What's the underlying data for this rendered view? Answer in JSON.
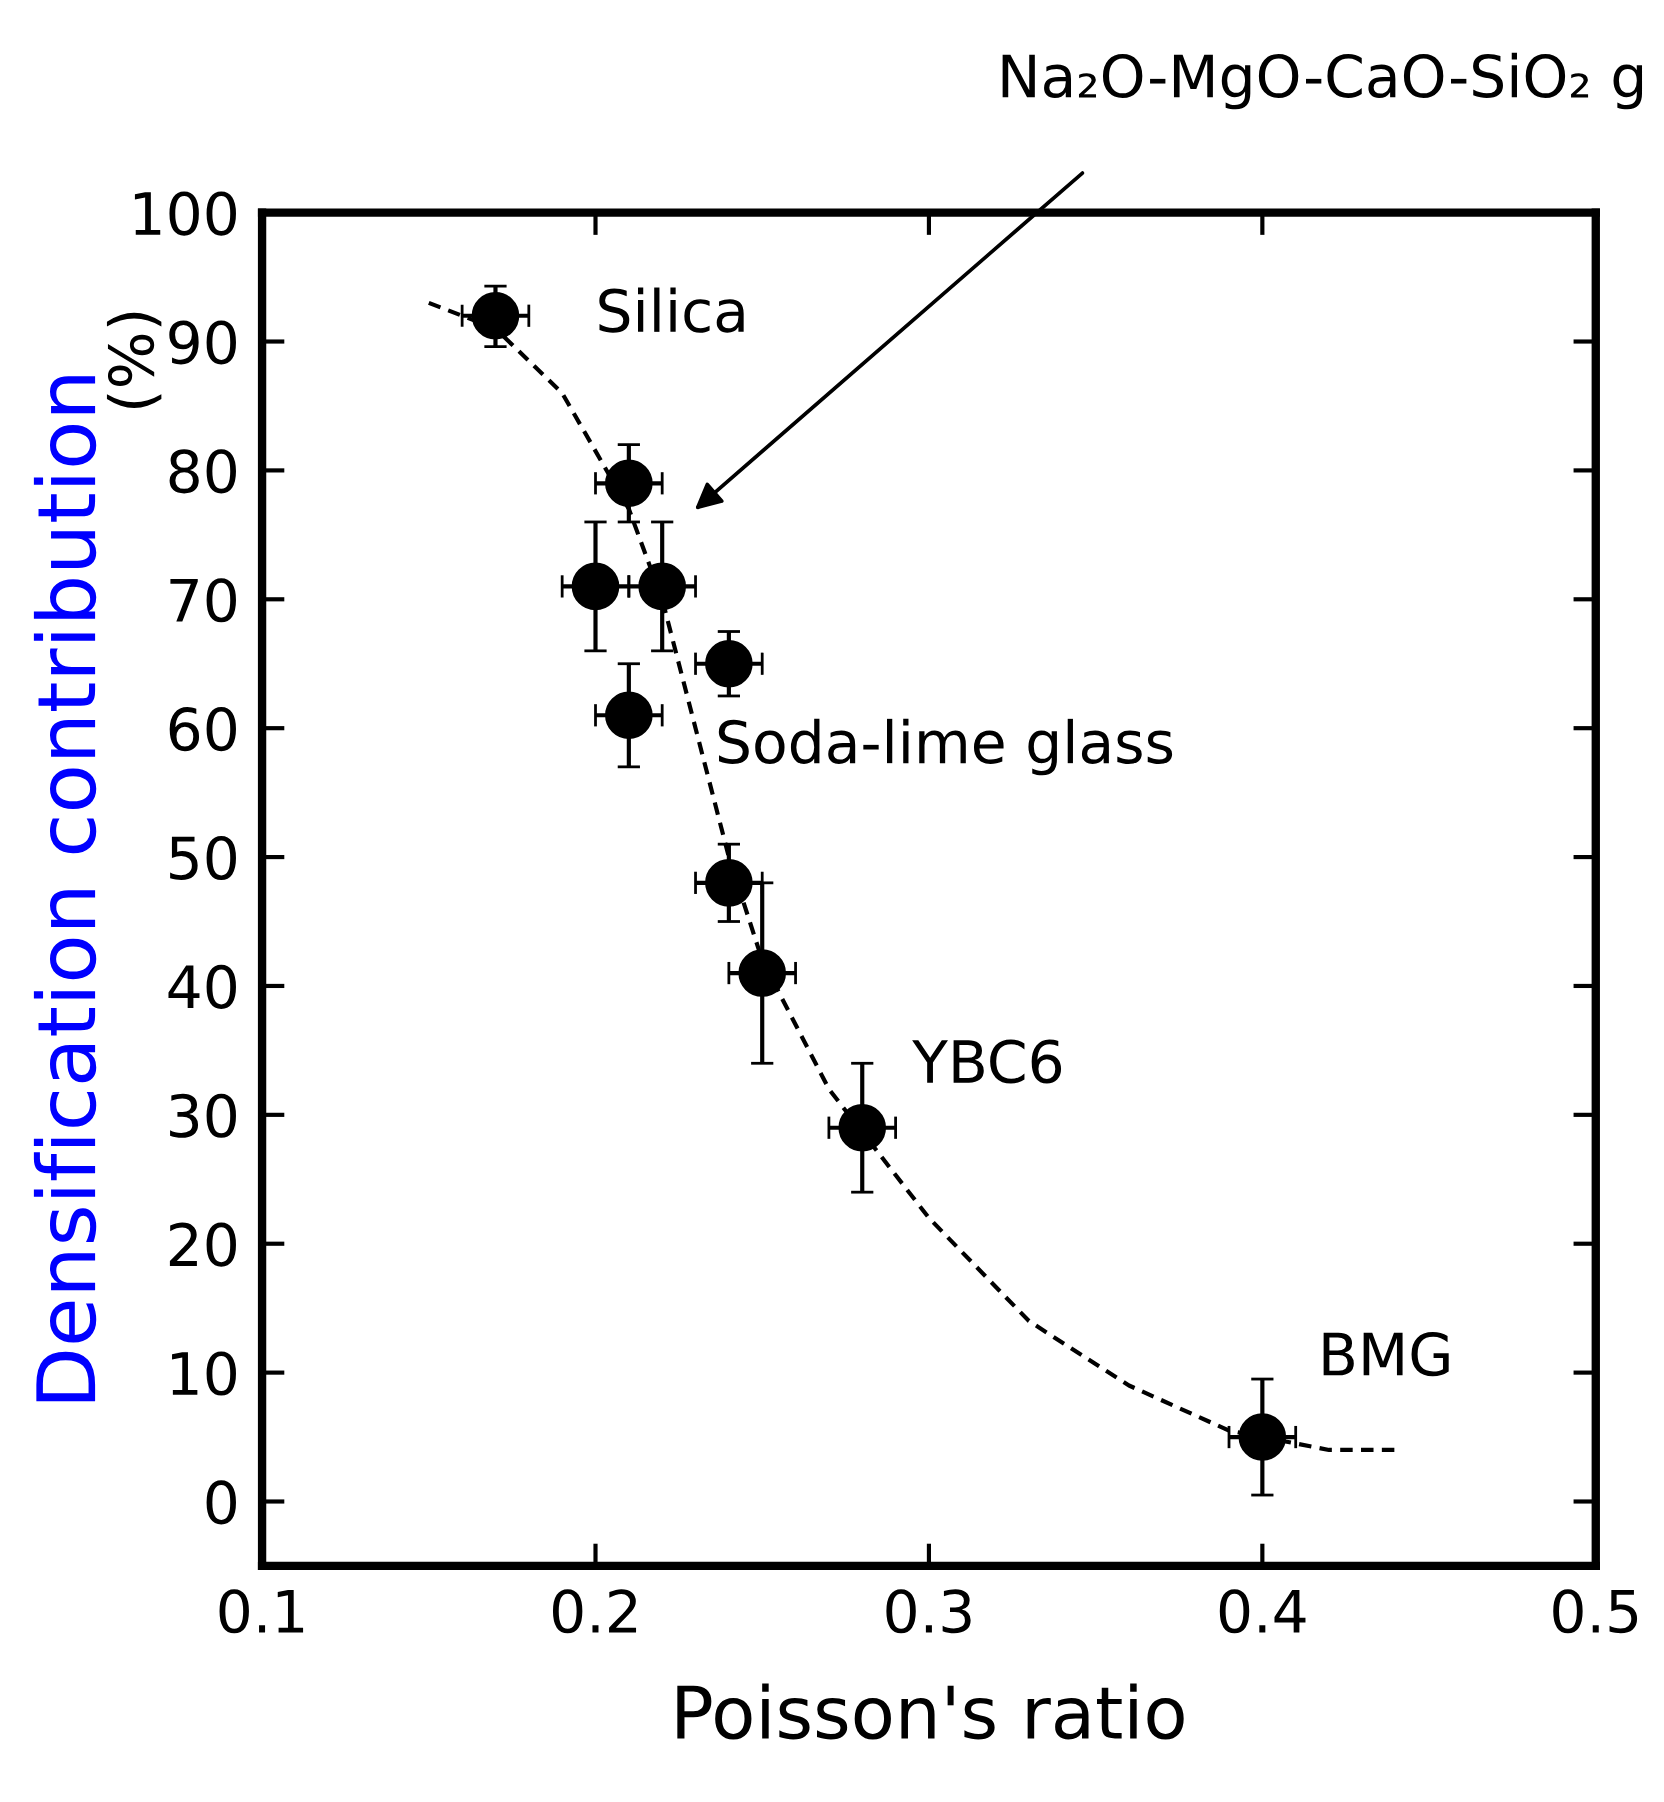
{
  "chart_data": {
    "type": "scatter",
    "xlabel": "Poisson's ratio",
    "ylabel": "Densification contribution",
    "xlim": [
      0.1,
      0.5
    ],
    "ylim": [
      -5,
      100
    ],
    "xticks": [
      0.1,
      0.2,
      0.3,
      0.4,
      0.5
    ],
    "yticks": [
      0,
      10,
      20,
      30,
      40,
      50,
      60,
      70,
      80,
      90,
      100
    ],
    "grid": false,
    "marker": "circle",
    "series": [
      {
        "color": "#000000",
        "x": [
          0.17,
          0.21,
          0.2,
          0.22,
          0.24,
          0.21,
          0.24,
          0.25,
          0.28,
          0.4
        ],
        "values": [
          92,
          79,
          71,
          71,
          65,
          61,
          48,
          41,
          29,
          5
        ],
        "errors": [
          [
            89.6,
            94.3
          ],
          [
            76,
            82
          ],
          [
            66,
            76
          ],
          [
            66,
            76
          ],
          [
            62.5,
            67.5
          ],
          [
            57,
            65
          ],
          [
            45,
            51
          ],
          [
            34,
            48
          ],
          [
            24,
            34
          ],
          [
            0.5,
            9.5
          ]
        ],
        "xerrors": [
          0.01,
          0.01,
          0.01,
          0.01,
          0.01,
          0.01,
          0.01,
          0.01,
          0.01,
          0.01
        ]
      },
      {
        "type": "line",
        "color": "#000000",
        "line_style": "dashed",
        "marker": "none",
        "x": [
          0.15,
          0.17,
          0.19,
          0.21,
          0.22,
          0.23,
          0.24,
          0.25,
          0.27,
          0.3,
          0.33,
          0.36,
          0.39,
          0.42,
          0.44
        ],
        "values": [
          93,
          91,
          86,
          77,
          70,
          60,
          50,
          42,
          32,
          22,
          14,
          9,
          5.5,
          4,
          4
        ]
      }
    ],
    "annotations": [
      {
        "text": "Silica",
        "x": 0.17,
        "y": 92
      },
      {
        "text": "Soda-lime glass",
        "x": 0.24,
        "y": 65
      },
      {
        "text": "YBC6",
        "x": 0.28,
        "y": 29
      },
      {
        "text": "BMG",
        "x": 0.4,
        "y": 5
      },
      "Na₂O-MgO-CaO-SiO₂ g",
      "(%)"
    ]
  }
}
